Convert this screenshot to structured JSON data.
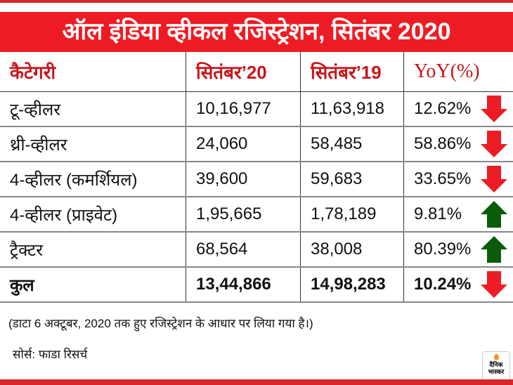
{
  "title": "ऑल इंडिया व्हीकल रजिस्ट्रेशन, सितंबर 2020",
  "colors": {
    "brand_red": "#ed1c24",
    "header_text": "#c8161d",
    "down": "#ed1c24",
    "up": "#0a5c0a"
  },
  "table": {
    "headers": [
      "कैटेगरी",
      "सितंबर’20",
      "सितंबर’19",
      "YoY(%)"
    ],
    "rows": [
      {
        "category": "टू-व्हीलर",
        "sep20": "10,16,977",
        "sep19": "11,63,918",
        "yoy": "12.62%",
        "trend": "down"
      },
      {
        "category": "थ्री-व्हीलर",
        "sep20": "24,060",
        "sep19": "58,485",
        "yoy": "58.86%",
        "trend": "down"
      },
      {
        "category": "4-व्हीलर (कमर्शियल)",
        "sep20": "39,600",
        "sep19": "59,683",
        "yoy": "33.65%",
        "trend": "down"
      },
      {
        "category": "4-व्हीलर (प्राइवेट)",
        "sep20": "1,95,665",
        "sep19": "1,78,189",
        "yoy": "9.81%",
        "trend": "up"
      },
      {
        "category": "ट्रैक्टर",
        "sep20": "68,564",
        "sep19": "38,008",
        "yoy": "80.39%",
        "trend": "up"
      },
      {
        "category": "कुल",
        "sep20": "13,44,866",
        "sep19": "14,98,283",
        "yoy": "10.24%",
        "trend": "down"
      }
    ]
  },
  "note": "(डाटा 6 अक्टूबर, 2020 तक हुए रजिस्ट्रेशन के आधार पर लिया गया है।)",
  "source": "सोर्स: फाडा रिसर्च",
  "logo": {
    "line1": "दैनिक",
    "line2": "भास्कर"
  }
}
